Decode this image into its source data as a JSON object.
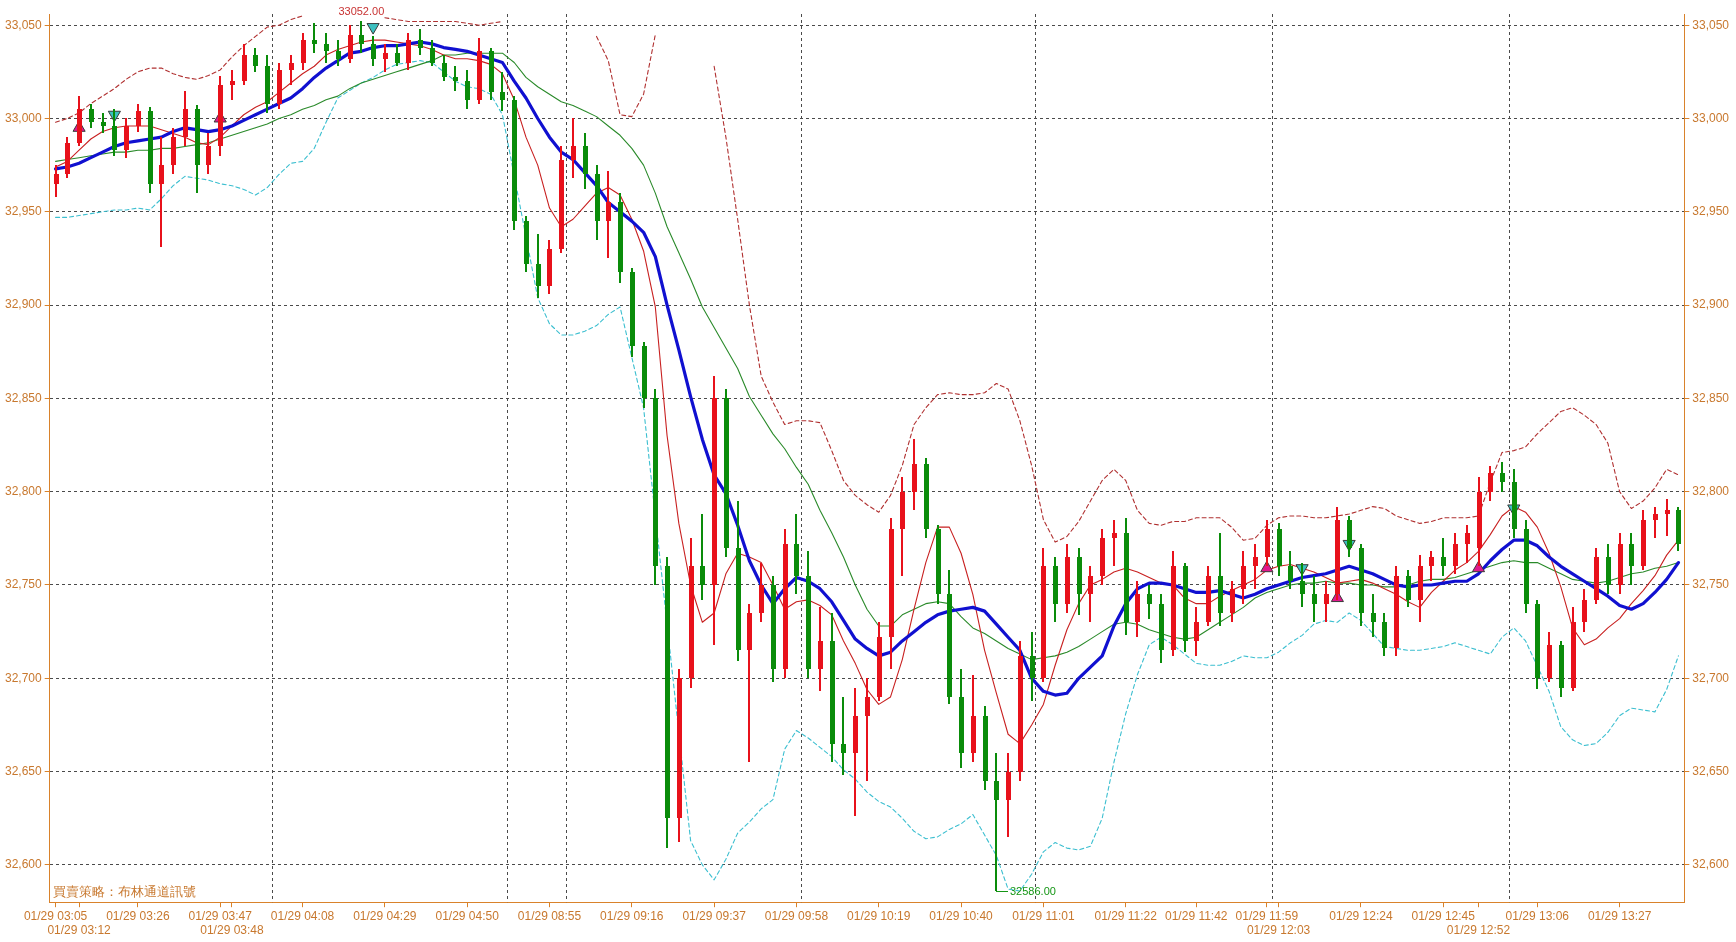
{
  "chart_data": {
    "type": "candlestick",
    "categories": [
      "01/29 03:05",
      null,
      "01/29 03:12",
      null,
      null,
      null,
      null,
      "01/29 03:26",
      null,
      null,
      null,
      null,
      null,
      null,
      "01/29 03:47",
      "01/29 03:48",
      null,
      null,
      null,
      null,
      null,
      "01/29 04:08",
      null,
      null,
      null,
      null,
      null,
      null,
      "01/29 04:29",
      null,
      null,
      null,
      null,
      null,
      null,
      "01/29 04:50",
      null,
      null,
      null,
      null,
      null,
      null,
      "01/29 08:55",
      null,
      null,
      null,
      null,
      null,
      null,
      "01/29 09:16",
      null,
      null,
      null,
      null,
      null,
      null,
      "01/29 09:37",
      null,
      null,
      null,
      null,
      null,
      null,
      "01/29 09:58",
      null,
      null,
      null,
      null,
      null,
      null,
      "01/29 10:19",
      null,
      null,
      null,
      null,
      null,
      null,
      "01/29 10:40",
      null,
      null,
      null,
      null,
      null,
      null,
      "01/29 11:01",
      null,
      null,
      null,
      null,
      null,
      null,
      "01/29 11:22",
      null,
      null,
      null,
      null,
      null,
      "01/29 11:42",
      null,
      null,
      null,
      null,
      null,
      "01/29 11:59",
      "01/29 12:03",
      null,
      null,
      null,
      null,
      null,
      null,
      "01/29 12:24",
      null,
      null,
      null,
      null,
      null,
      null,
      "01/29 12:45",
      null,
      null,
      "01/29 12:52",
      null,
      null,
      null,
      null,
      "01/29 13:06",
      null,
      null,
      null,
      null,
      null,
      null,
      "01/29 13:27",
      null,
      null,
      null,
      null,
      null
    ],
    "ohlc": [
      [
        32965,
        32975,
        32958,
        32970
      ],
      [
        32970,
        32990,
        32968,
        32987
      ],
      [
        32987,
        33012,
        32985,
        33005
      ],
      [
        33005,
        33008,
        32995,
        32998
      ],
      [
        32998,
        33003,
        32992,
        32996
      ],
      [
        32996,
        33005,
        32980,
        32983
      ],
      [
        32983,
        33000,
        32979,
        32996
      ],
      [
        32996,
        33008,
        32993,
        33004
      ],
      [
        33004,
        33006,
        32960,
        32965
      ],
      [
        32965,
        32990,
        32931,
        32975
      ],
      [
        32975,
        32995,
        32970,
        32990
      ],
      [
        32990,
        33015,
        32985,
        33005
      ],
      [
        33005,
        33007,
        32960,
        32975
      ],
      [
        32975,
        32992,
        32970,
        32985
      ],
      [
        32985,
        33023,
        32980,
        33018
      ],
      [
        33018,
        33026,
        33010,
        33020
      ],
      [
        33020,
        33040,
        33018,
        33034
      ],
      [
        33034,
        33038,
        33025,
        33028
      ],
      [
        33028,
        33034,
        33003,
        33008
      ],
      [
        33008,
        33030,
        33005,
        33026
      ],
      [
        33026,
        33034,
        33018,
        33030
      ],
      [
        33030,
        33046,
        33026,
        33042
      ],
      [
        33042,
        33051,
        33035,
        33040
      ],
      [
        33040,
        33046,
        33030,
        33036
      ],
      [
        33036,
        33042,
        33028,
        33032
      ],
      [
        33032,
        33050,
        33030,
        33045
      ],
      [
        33045,
        33052,
        33035,
        33040
      ],
      [
        33040,
        33044,
        33028,
        33032
      ],
      [
        33032,
        33040,
        33025,
        33035
      ],
      [
        33035,
        33040,
        33028,
        33030
      ],
      [
        33030,
        33046,
        33026,
        33042
      ],
      [
        33042,
        33048,
        33034,
        33038
      ],
      [
        33038,
        33042,
        33028,
        33030
      ],
      [
        33030,
        33034,
        33020,
        33022
      ],
      [
        33022,
        33028,
        33015,
        33020
      ],
      [
        33020,
        33026,
        33005,
        33010
      ],
      [
        33010,
        33043,
        33008,
        33036
      ],
      [
        33036,
        33038,
        33010,
        33014
      ],
      [
        33014,
        33025,
        33004,
        33010
      ],
      [
        33010,
        33012,
        32940,
        32945
      ],
      [
        32945,
        32948,
        32918,
        32922
      ],
      [
        32922,
        32938,
        32904,
        32910
      ],
      [
        32910,
        32935,
        32906,
        32930
      ],
      [
        32930,
        32985,
        32928,
        32978
      ],
      [
        32978,
        33000,
        32968,
        32985
      ],
      [
        32985,
        32992,
        32962,
        32970
      ],
      [
        32970,
        32975,
        32935,
        32945
      ],
      [
        32945,
        32972,
        32925,
        32955
      ],
      [
        32955,
        32960,
        32912,
        32918
      ],
      [
        32918,
        32920,
        32872,
        32878
      ],
      [
        32878,
        32880,
        32845,
        32850
      ],
      [
        32850,
        32855,
        32750,
        32760
      ],
      [
        32760,
        32765,
        32609,
        32625
      ],
      [
        32625,
        32705,
        32612,
        32700
      ],
      [
        32700,
        32775,
        32695,
        32760
      ],
      [
        32760,
        32788,
        32742,
        32750
      ],
      [
        32750,
        32862,
        32718,
        32850
      ],
      [
        32850,
        32855,
        32765,
        32770
      ],
      [
        32770,
        32795,
        32709,
        32715
      ],
      [
        32715,
        32740,
        32655,
        32735
      ],
      [
        32735,
        32762,
        32730,
        32750
      ],
      [
        32750,
        32755,
        32698,
        32705
      ],
      [
        32705,
        32780,
        32700,
        32772
      ],
      [
        32772,
        32788,
        32745,
        32755
      ],
      [
        32755,
        32768,
        32700,
        32705
      ],
      [
        32705,
        32738,
        32693,
        32720
      ],
      [
        32720,
        32735,
        32655,
        32665
      ],
      [
        32665,
        32690,
        32648,
        32660
      ],
      [
        32660,
        32695,
        32626,
        32680
      ],
      [
        32680,
        32700,
        32645,
        32690
      ],
      [
        32690,
        32730,
        32688,
        32722
      ],
      [
        32722,
        32786,
        32705,
        32780
      ],
      [
        32780,
        32808,
        32755,
        32800
      ],
      [
        32800,
        32828,
        32790,
        32815
      ],
      [
        32815,
        32818,
        32775,
        32780
      ],
      [
        32780,
        32782,
        32740,
        32745
      ],
      [
        32745,
        32758,
        32686,
        32690
      ],
      [
        32690,
        32705,
        32652,
        32660
      ],
      [
        32660,
        32702,
        32655,
        32680
      ],
      [
        32680,
        32685,
        32640,
        32645
      ],
      [
        32645,
        32660,
        32586,
        32635
      ],
      [
        32635,
        32660,
        32615,
        32650
      ],
      [
        32650,
        32720,
        32645,
        32712
      ],
      [
        32712,
        32725,
        32688,
        32700
      ],
      [
        32700,
        32770,
        32698,
        32760
      ],
      [
        32760,
        32765,
        32730,
        32740
      ],
      [
        32740,
        32772,
        32735,
        32765
      ],
      [
        32765,
        32770,
        32734,
        32745
      ],
      [
        32745,
        32760,
        32730,
        32755
      ],
      [
        32755,
        32780,
        32750,
        32775
      ],
      [
        32775,
        32785,
        32760,
        32778
      ],
      [
        32778,
        32786,
        32723,
        32730
      ],
      [
        32730,
        32752,
        32722,
        32745
      ],
      [
        32745,
        32750,
        32732,
        32740
      ],
      [
        32740,
        32745,
        32708,
        32715
      ],
      [
        32715,
        32768,
        32712,
        32760
      ],
      [
        32760,
        32762,
        32714,
        32720
      ],
      [
        32720,
        32738,
        32712,
        32730
      ],
      [
        32730,
        32760,
        32728,
        32755
      ],
      [
        32755,
        32778,
        32728,
        32735
      ],
      [
        32735,
        32752,
        32730,
        32748
      ],
      [
        32748,
        32768,
        32740,
        32760
      ],
      [
        32760,
        32772,
        32748,
        32765
      ],
      [
        32765,
        32785,
        32760,
        32780
      ],
      [
        32780,
        32783,
        32755,
        32760
      ],
      [
        32760,
        32768,
        32748,
        32752
      ],
      [
        32752,
        32762,
        32738,
        32745
      ],
      [
        32745,
        32755,
        32730,
        32740
      ],
      [
        32740,
        32752,
        32730,
        32745
      ],
      [
        32745,
        32792,
        32742,
        32785
      ],
      [
        32785,
        32787,
        32765,
        32770
      ],
      [
        32770,
        32772,
        32728,
        32735
      ],
      [
        32735,
        32745,
        32722,
        32730
      ],
      [
        32730,
        32735,
        32712,
        32716
      ],
      [
        32716,
        32760,
        32712,
        32755
      ],
      [
        32755,
        32758,
        32738,
        32742
      ],
      [
        32742,
        32766,
        32730,
        32760
      ],
      [
        32760,
        32768,
        32752,
        32765
      ],
      [
        32765,
        32775,
        32755,
        32760
      ],
      [
        32760,
        32778,
        32756,
        32772
      ],
      [
        32772,
        32782,
        32762,
        32778
      ],
      [
        32770,
        32808,
        32760,
        32800
      ],
      [
        32800,
        32814,
        32795,
        32810
      ],
      [
        32810,
        32816,
        32800,
        32805
      ],
      [
        32805,
        32812,
        32775,
        32780
      ],
      [
        32780,
        32785,
        32735,
        32740
      ],
      [
        32740,
        32742,
        32694,
        32700
      ],
      [
        32700,
        32725,
        32698,
        32718
      ],
      [
        32718,
        32720,
        32690,
        32695
      ],
      [
        32695,
        32738,
        32693,
        32730
      ],
      [
        32730,
        32748,
        32725,
        32742
      ],
      [
        32742,
        32770,
        32740,
        32765
      ],
      [
        32765,
        32772,
        32745,
        32750
      ],
      [
        32750,
        32778,
        32745,
        32772
      ],
      [
        32772,
        32778,
        32750,
        32760
      ],
      [
        32760,
        32790,
        32758,
        32785
      ],
      [
        32785,
        32792,
        32775,
        32788
      ],
      [
        32788,
        32796,
        32776,
        32790
      ],
      [
        32790,
        32792,
        32768,
        32772
      ]
    ],
    "colors": [
      "#e8111b",
      "#e8111b",
      "#e8111b",
      "#0a8c0a",
      "#0a8c0a",
      "#0a8c0a",
      "#e8111b",
      "#e8111b",
      "#0a8c0a",
      "#e8111b",
      "#e8111b",
      "#e8111b",
      "#0a8c0a",
      "#e8111b",
      "#e8111b",
      "#e8111b",
      "#e8111b",
      "#0a8c0a",
      "#0a8c0a",
      "#e8111b",
      "#e8111b",
      "#e8111b",
      "#0a8c0a",
      "#0a8c0a",
      "#0a8c0a",
      "#e8111b",
      "#0a8c0a",
      "#0a8c0a",
      "#e8111b",
      "#0a8c0a",
      "#e8111b",
      "#0a8c0a",
      "#0a8c0a",
      "#0a8c0a",
      "#0a8c0a",
      "#0a8c0a",
      "#e8111b",
      "#0a8c0a",
      "#0a8c0a",
      "#0a8c0a",
      "#0a8c0a",
      "#0a8c0a",
      "#e8111b",
      "#e8111b",
      "#e8111b",
      "#0a8c0a",
      "#0a8c0a",
      "#e8111b",
      "#0a8c0a",
      "#0a8c0a",
      "#0a8c0a",
      "#0a8c0a",
      "#0a8c0a",
      "#e8111b",
      "#e8111b",
      "#0a8c0a",
      "#e8111b",
      "#0a8c0a",
      "#0a8c0a",
      "#e8111b",
      "#e8111b",
      "#0a8c0a",
      "#e8111b",
      "#0a8c0a",
      "#0a8c0a",
      "#e8111b",
      "#0a8c0a",
      "#0a8c0a",
      "#e8111b",
      "#e8111b",
      "#e8111b",
      "#e8111b",
      "#e8111b",
      "#e8111b",
      "#0a8c0a",
      "#0a8c0a",
      "#0a8c0a",
      "#0a8c0a",
      "#e8111b",
      "#0a8c0a",
      "#0a8c0a",
      "#e8111b",
      "#e8111b",
      "#0a8c0a",
      "#e8111b",
      "#0a8c0a",
      "#e8111b",
      "#0a8c0a",
      "#e8111b",
      "#e8111b",
      "#e8111b",
      "#0a8c0a",
      "#e8111b",
      "#0a8c0a",
      "#0a8c0a",
      "#e8111b",
      "#0a8c0a",
      "#e8111b",
      "#e8111b",
      "#0a8c0a",
      "#e8111b",
      "#e8111b",
      "#e8111b",
      "#e8111b",
      "#0a8c0a",
      "#0a8c0a",
      "#0a8c0a",
      "#0a8c0a",
      "#e8111b",
      "#e8111b",
      "#0a8c0a",
      "#0a8c0a",
      "#0a8c0a",
      "#0a8c0a",
      "#e8111b",
      "#0a8c0a",
      "#e8111b",
      "#e8111b",
      "#0a8c0a",
      "#e8111b",
      "#e8111b",
      "#e8111b",
      "#e8111b",
      "#0a8c0a",
      "#0a8c0a",
      "#0a8c0a",
      "#0a8c0a",
      "#e8111b",
      "#0a8c0a",
      "#e8111b",
      "#e8111b",
      "#e8111b",
      "#0a8c0a",
      "#e8111b",
      "#0a8c0a",
      "#e8111b",
      "#e8111b",
      "#e8111b",
      "#0a8c0a"
    ],
    "series": [
      {
        "type": "line",
        "color": "#1010d0",
        "line_style": "solid",
        "values": [
          32973,
          32974,
          32976,
          32979,
          32982,
          32985,
          32987,
          32988,
          32989,
          32990,
          32993,
          32995,
          32994,
          32993,
          32994,
          32996,
          32999,
          33002,
          33005,
          33008,
          33011,
          33016,
          33022,
          33027,
          33031,
          33035,
          33036,
          33038,
          33039,
          33039,
          33040,
          33041,
          33040,
          33038,
          33037,
          33036,
          33034,
          33032,
          33030,
          33020,
          33011,
          33000,
          32990,
          32982,
          32978,
          32971,
          32964,
          32955,
          32950,
          32945,
          32939,
          32926,
          32900,
          32876,
          32851,
          32828,
          32809,
          32799,
          32782,
          32763,
          32750,
          32740,
          32748,
          32754,
          32752,
          32748,
          32741,
          32731,
          32721,
          32716,
          32712,
          32714,
          32720,
          32725,
          32730,
          32734,
          32736,
          32737,
          32738,
          32736,
          32729,
          32722,
          32715,
          32700,
          32693,
          32691,
          32692,
          32700,
          32706,
          32712,
          32728,
          32740,
          32748,
          32751,
          32751,
          32750,
          32748,
          32746,
          32746,
          32747,
          32745,
          32743,
          32745,
          32748,
          32750,
          32752,
          32754,
          32755,
          32756,
          32758,
          32760,
          32758,
          32756,
          32753,
          32750,
          32749,
          32750,
          32750,
          32751,
          32752,
          32752,
          32756,
          32763,
          32769,
          32774,
          32774,
          32771,
          32765,
          32760,
          32756,
          32752,
          32748,
          32744,
          32739,
          32737,
          32740,
          32746,
          32753,
          32762
        ]
      },
      {
        "type": "line",
        "color": "#c82020",
        "line_style": "solid",
        "values": [
          32974,
          32977,
          32983,
          32989,
          32993,
          32995,
          32996,
          32996,
          32996,
          32994,
          32992,
          32990,
          32987,
          32986,
          32990,
          32996,
          33002,
          33006,
          33009,
          33014,
          33019,
          33024,
          33028,
          33034,
          33037,
          33039,
          33041,
          33042,
          33042,
          33041,
          33040,
          33039,
          33037,
          33034,
          33032,
          33032,
          33031,
          33029,
          33024,
          33010,
          32990,
          32975,
          32952,
          32942,
          32946,
          32953,
          32960,
          32963,
          32959,
          32946,
          32929,
          32899,
          32830,
          32783,
          32750,
          32730,
          32735,
          32756,
          32767,
          32765,
          32762,
          32750,
          32737,
          32741,
          32742,
          32739,
          32734,
          32720,
          32708,
          32694,
          32686,
          32690,
          32710,
          32737,
          32762,
          32781,
          32781,
          32767,
          32745,
          32715,
          32692,
          32670,
          32665,
          32675,
          32686,
          32707,
          32726,
          32740,
          32750,
          32753,
          32757,
          32759,
          32757,
          32754,
          32751,
          32750,
          32743,
          32740,
          32740,
          32744,
          32747,
          32750,
          32753,
          32758,
          32760,
          32761,
          32759,
          32757,
          32754,
          32751,
          32752,
          32753,
          32751,
          32748,
          32745,
          32741,
          32738,
          32746,
          32752,
          32758,
          32762,
          32768,
          32777,
          32787,
          32792,
          32789,
          32781,
          32767,
          32749,
          32727,
          32718,
          32721,
          32727,
          32732,
          32740,
          32747,
          32755,
          32766,
          32774
        ]
      },
      {
        "type": "line",
        "color": "#2a8a2a",
        "line_style": "solid",
        "values": [
          32977,
          32978,
          32979,
          32980,
          32981,
          32982,
          32982,
          32983,
          32983,
          32984,
          32984,
          32985,
          32986,
          32987,
          32989,
          32991,
          32993,
          32995,
          32997,
          33000,
          33002,
          33005,
          33007,
          33010,
          33012,
          33016,
          33019,
          33021,
          33023,
          33025,
          33027,
          33029,
          33031,
          33034,
          33034,
          33035,
          33035,
          33035,
          33035,
          33030,
          33022,
          33017,
          33013,
          33009,
          33007,
          33004,
          33001,
          32996,
          32991,
          32984,
          32975,
          32960,
          32942,
          32928,
          32914,
          32899,
          32888,
          32877,
          32866,
          32851,
          32841,
          32831,
          32823,
          32813,
          32804,
          32790,
          32778,
          32765,
          32750,
          32737,
          32728,
          32728,
          32734,
          32737,
          32740,
          32741,
          32740,
          32733,
          32727,
          32724,
          32720,
          32716,
          32713,
          32710,
          32711,
          32712,
          32714,
          32717,
          32721,
          32725,
          32729,
          32730,
          32729,
          32726,
          32724,
          32722,
          32721,
          32722,
          32726,
          32730,
          32734,
          32738,
          32743,
          32746,
          32748,
          32750,
          32751,
          32751,
          32752,
          32751,
          32751,
          32750,
          32750,
          32749,
          32749,
          32750,
          32752,
          32753,
          32753,
          32754,
          32756,
          32758,
          32760,
          32762,
          32763,
          32762,
          32762,
          32759,
          32756,
          32753,
          32752,
          32751,
          32752,
          32754,
          32756,
          32757,
          32759,
          32760,
          32762
        ]
      },
      {
        "type": "line",
        "color": "#b03030",
        "line_style": "dashed",
        "values": [
          32998,
          33000,
          33003,
          33008,
          33012,
          33016,
          33021,
          33025,
          33027,
          33027,
          33024,
          33022,
          33021,
          33023,
          33026,
          33033,
          33039,
          33044,
          33049,
          33050,
          33053,
          33055,
          null,
          null,
          null,
          null,
          null,
          null,
          33054,
          33053,
          33052,
          33052,
          33052,
          33052,
          33052,
          33051,
          33050,
          33051,
          33052,
          null,
          null,
          null,
          null,
          null,
          null,
          null,
          33044,
          33031,
          33002,
          33001,
          33013,
          33045,
          null,
          null,
          null,
          null,
          33028,
          32990,
          32946,
          32900,
          32862,
          32848,
          32836,
          32838,
          32838,
          32837,
          32822,
          32806,
          32798,
          32793,
          32789,
          32798,
          32814,
          32836,
          32845,
          32852,
          32853,
          32852,
          32852,
          32853,
          32858,
          32855,
          32838,
          32814,
          32785,
          32773,
          32776,
          32784,
          32795,
          32806,
          32812,
          32806,
          32790,
          32783,
          32782,
          32784,
          32784,
          32786,
          32786,
          32786,
          32781,
          32774,
          32775,
          32782,
          32786,
          32787,
          32787,
          32786,
          32786,
          32787,
          32788,
          32790,
          32792,
          32791,
          32787,
          32785,
          32783,
          32784,
          32786,
          32786,
          32786,
          32787,
          32805,
          32821,
          32822,
          32824,
          32831,
          32837,
          32843,
          32845,
          32841,
          32836,
          32826,
          32800,
          32791,
          32795,
          32802,
          32812,
          32809
        ]
      },
      {
        "type": "line",
        "color": "#3cbfd0",
        "line_style": "dashed",
        "values": [
          32947,
          32947,
          32948,
          32949,
          32950,
          32951,
          32951,
          32952,
          32951,
          32957,
          32964,
          32969,
          32968,
          32967,
          32965,
          32964,
          32962,
          32959,
          32963,
          32970,
          32976,
          32977,
          32984,
          32998,
          33011,
          33015,
          33019,
          33022,
          33026,
          33029,
          33030,
          33031,
          33030,
          33025,
          33020,
          33017,
          33016,
          33013,
          33002,
          null,
          null,
          32904,
          32890,
          32884,
          32884,
          32886,
          32889,
          32895,
          32899,
          null,
          32845,
          null,
          null,
          null,
          32613,
          32600,
          32592,
          32603,
          32617,
          32623,
          32630,
          32635,
          32662,
          32672,
          32668,
          32663,
          32658,
          32651,
          32646,
          32639,
          32634,
          32631,
          32625,
          32618,
          32614,
          32615,
          32619,
          32622,
          32627,
          32616,
          32605,
          32587,
          32586,
          32595,
          32607,
          32612,
          32609,
          32608,
          32610,
          32625,
          32655,
          32681,
          32702,
          32718,
          32722,
          32718,
          32713,
          32708,
          32707,
          32707,
          32709,
          32712,
          32711,
          32711,
          32714,
          32719,
          32723,
          32729,
          32731,
          32730,
          32735,
          32731,
          32724,
          32717,
          null,
          32715,
          32715,
          32716,
          32717,
          32719,
          32717,
          32715,
          32713,
          32722,
          32727,
          32720,
          null,
          32693,
          32674,
          32667,
          32664,
          32665,
          32671,
          32680,
          32684,
          32683,
          32682,
          32694,
          32712
        ]
      },
      {
        "type": "scatter",
        "color": "#e0198c",
        "marker": "triangle",
        "values": [
          null,
          null,
          32995,
          null,
          null,
          null,
          null,
          null,
          null,
          null,
          null,
          null,
          null,
          null,
          33000,
          null,
          null,
          null,
          null,
          null,
          null,
          null,
          null,
          null,
          null,
          null,
          null,
          null,
          null,
          null,
          null,
          null,
          null,
          null,
          null,
          null,
          null,
          null,
          null,
          null,
          null,
          null,
          null,
          null,
          null,
          null,
          null,
          null,
          null,
          null,
          null,
          null,
          null,
          null,
          null,
          null,
          null,
          null,
          null,
          null,
          null,
          null,
          null,
          null,
          null,
          null,
          null,
          null,
          null,
          null,
          null,
          null,
          null,
          null,
          null,
          null,
          null,
          null,
          null,
          null,
          null,
          null,
          null,
          null,
          null,
          null,
          null,
          null,
          null,
          null,
          null,
          null,
          null,
          null,
          null,
          null,
          null,
          null,
          null,
          null,
          null,
          null,
          null,
          32759,
          null,
          null,
          null,
          null,
          null,
          32743,
          null,
          null,
          null,
          null,
          null,
          null,
          null,
          null,
          null,
          null,
          null,
          32759,
          null,
          null,
          null,
          null,
          null,
          null,
          null,
          null,
          null,
          null,
          null,
          null,
          null,
          null,
          null,
          null,
          null
        ]
      },
      {
        "type": "scatter",
        "color": "#3cc0c0",
        "marker": "triangle",
        "values": [
          null,
          null,
          null,
          null,
          null,
          33002,
          null,
          null,
          null,
          null,
          null,
          null,
          null,
          null,
          null,
          null,
          null,
          null,
          null,
          null,
          null,
          null,
          null,
          null,
          null,
          null,
          null,
          33049,
          null,
          null,
          null,
          null,
          null,
          null,
          null,
          null,
          null,
          null,
          null,
          null,
          null,
          null,
          null,
          null,
          null,
          null,
          null,
          null,
          null,
          null,
          null,
          null,
          null,
          null,
          null,
          null,
          null,
          null,
          null,
          null,
          null,
          null,
          null,
          null,
          null,
          null,
          null,
          null,
          null,
          null,
          null,
          null,
          null,
          null,
          null,
          null,
          null,
          null,
          null,
          null,
          null,
          null,
          null,
          null,
          null,
          null,
          null,
          null,
          null,
          null,
          null,
          null,
          null,
          null,
          null,
          null,
          null,
          null,
          null,
          null,
          null,
          null,
          null,
          null,
          null,
          null,
          32759,
          null,
          null,
          null,
          32772,
          null,
          null,
          null,
          null,
          null,
          null,
          null,
          null,
          null,
          null,
          null,
          null,
          null,
          32791,
          null,
          null,
          null,
          null,
          null,
          null,
          null,
          null,
          null,
          null,
          null,
          null,
          null,
          null
        ]
      }
    ],
    "ylim": [
      32580,
      33056
    ],
    "yticks": [
      {
        "value": 32600,
        "label": "32,600"
      },
      {
        "value": 32650,
        "label": "32,650"
      },
      {
        "value": 32700,
        "label": "32,700"
      },
      {
        "value": 32750,
        "label": "32,750"
      },
      {
        "value": 32800,
        "label": "32,800"
      },
      {
        "value": 32850,
        "label": "32,850"
      },
      {
        "value": 32900,
        "label": "32,900"
      },
      {
        "value": 32950,
        "label": "32,950"
      },
      {
        "value": 33000,
        "label": "33,000"
      },
      {
        "value": 33050,
        "label": "33,050"
      }
    ],
    "y2lim": [
      32580,
      33056
    ],
    "y2ticks": [
      {
        "value": 32600,
        "label": "32,600"
      },
      {
        "value": 32650,
        "label": "32,650"
      },
      {
        "value": 32700,
        "label": "32,700"
      },
      {
        "value": 32750,
        "label": "32,750"
      },
      {
        "value": 32800,
        "label": "32,800"
      },
      {
        "value": 32850,
        "label": "32,850"
      },
      {
        "value": 32900,
        "label": "32,900"
      },
      {
        "value": 32950,
        "label": "32,950"
      },
      {
        "value": 33000,
        "label": "33,000"
      },
      {
        "value": 33050,
        "label": "33,050"
      }
    ],
    "grid": "y",
    "annotations": [
      "買賣策略：布林通道訊號",
      {
        "text": "33052.00",
        "y": 33052
      },
      "32586.00"
    ]
  }
}
